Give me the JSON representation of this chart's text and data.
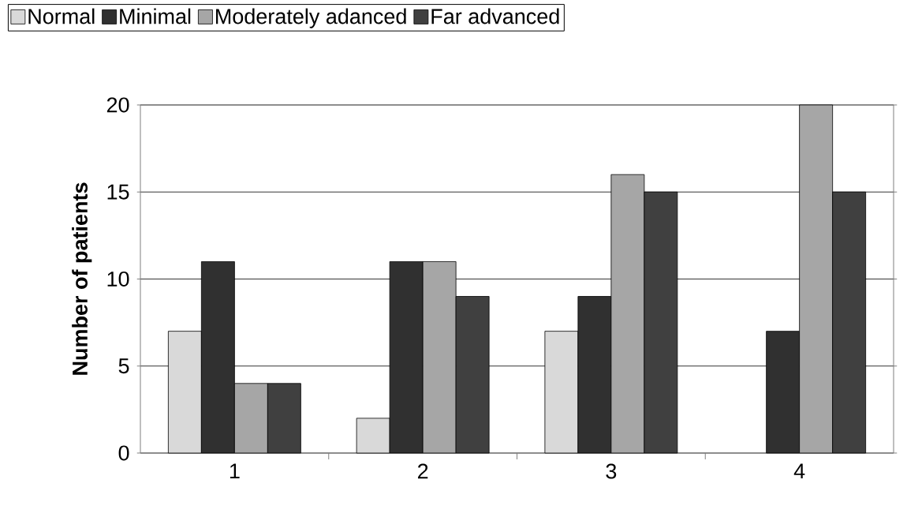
{
  "chart_data": {
    "type": "bar",
    "ylabel": "Number of patients",
    "categories": [
      "1",
      "2",
      "3",
      "4"
    ],
    "series": [
      {
        "name": "Normal",
        "color": "#d9d9d9",
        "values": [
          7,
          2,
          7,
          null
        ]
      },
      {
        "name": "Minimal",
        "color": "#303030",
        "values": [
          11,
          11,
          9,
          7
        ]
      },
      {
        "name": "Moderately adanced",
        "color": "#a6a6a6",
        "values": [
          4,
          11,
          16,
          20
        ]
      },
      {
        "name": "Far advanced",
        "color": "#404040",
        "values": [
          4,
          9,
          15,
          15
        ]
      }
    ],
    "ylim": [
      0,
      20
    ],
    "yticks": [
      0,
      5,
      10,
      15,
      20
    ],
    "grid": "y",
    "legend": "top"
  }
}
